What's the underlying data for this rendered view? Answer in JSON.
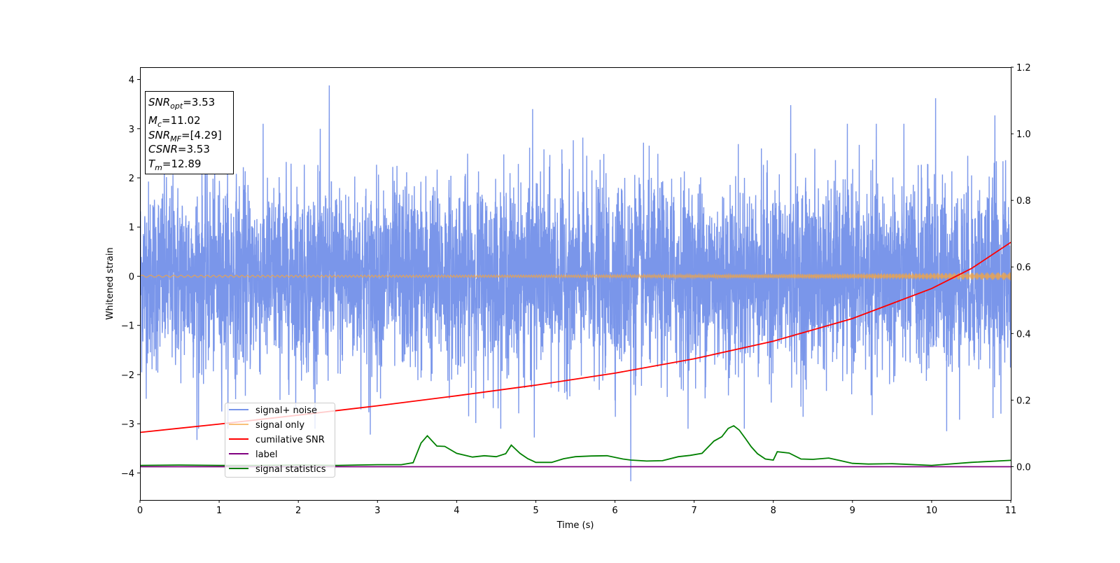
{
  "chart_data": {
    "type": "line",
    "xlabel": "Time (s)",
    "ylabel": "Whitened strain",
    "xlim": [
      0,
      11
    ],
    "ylim": [
      -4.55,
      4.25
    ],
    "y2lim": [
      -0.1,
      1.2
    ],
    "xticks": [
      "0",
      "1",
      "2",
      "3",
      "4",
      "5",
      "6",
      "7",
      "8",
      "9",
      "10",
      "11"
    ],
    "yticks": [
      "−4",
      "−3",
      "−2",
      "−1",
      "0",
      "1",
      "2",
      "3",
      "4"
    ],
    "y2ticks": [
      "0.0",
      "0.2",
      "0.4",
      "0.6",
      "0.8",
      "1.0",
      "1.2"
    ],
    "legend_position": "lower-left",
    "grid": false,
    "stats_box": {
      "snr_opt": {
        "label": "SNR",
        "sub": "opt",
        "value": "=3.53"
      },
      "mc": {
        "label": "M",
        "sub": "c",
        "value": "=11.02"
      },
      "snr_mf": {
        "label": "SNR",
        "sub": "MF",
        "value": "=[4.29]"
      },
      "csnr": {
        "label": "CSNR",
        "value": "=3.53"
      },
      "tm": {
        "label": "T",
        "sub": "m",
        "value": "=12.89"
      }
    },
    "series": [
      {
        "name": "signal+ noise",
        "axis": "left",
        "color": "#4169e1",
        "kind": "noise",
        "std": 0.95,
        "notable_spikes": [
          {
            "x": 2.39,
            "y": 3.88
          },
          {
            "x": 6.2,
            "y": -4.17
          },
          {
            "x": 10.05,
            "y": 3.62
          },
          {
            "x": 8.22,
            "y": 3.48
          },
          {
            "x": 4.96,
            "y": 3.4
          },
          {
            "x": 0.72,
            "y": -3.33
          },
          {
            "x": 2.91,
            "y": -3.22
          },
          {
            "x": 4.98,
            "y": -3.28
          },
          {
            "x": 10.8,
            "y": 3.27
          },
          {
            "x": 10.19,
            "y": -3.15
          }
        ]
      },
      {
        "name": "signal only",
        "axis": "left",
        "color": "#f5a540",
        "kind": "chirp",
        "amplitude_start": 0.02,
        "amplitude_end": 0.08
      },
      {
        "name": "cumilative SNR",
        "axis": "right",
        "color": "#ff0000",
        "x": [
          0,
          1,
          2,
          3,
          4,
          5,
          6,
          7,
          8,
          9,
          10,
          10.5,
          11
        ],
        "y": [
          0.103,
          0.128,
          0.155,
          0.183,
          0.213,
          0.245,
          0.281,
          0.324,
          0.377,
          0.445,
          0.535,
          0.595,
          0.674
        ]
      },
      {
        "name": "label",
        "axis": "right",
        "color": "#800080",
        "x": [
          0,
          11
        ],
        "y": [
          0,
          0
        ]
      },
      {
        "name": "signal statistics",
        "axis": "right",
        "color": "#008000",
        "x": [
          0,
          0.5,
          1,
          1.5,
          2,
          2.5,
          3,
          3.3,
          3.45,
          3.55,
          3.63,
          3.75,
          3.85,
          4.0,
          4.2,
          4.35,
          4.5,
          4.62,
          4.69,
          4.8,
          4.9,
          5.0,
          5.2,
          5.35,
          5.5,
          5.7,
          5.9,
          6.1,
          6.2,
          6.4,
          6.6,
          6.8,
          6.95,
          7.1,
          7.25,
          7.35,
          7.43,
          7.5,
          7.57,
          7.65,
          7.72,
          7.8,
          7.9,
          8.0,
          8.05,
          8.2,
          8.35,
          8.5,
          8.7,
          8.85,
          9.0,
          9.2,
          9.5,
          10.0,
          10.5,
          11.0
        ],
        "y": [
          0.004,
          0.005,
          0.004,
          0.004,
          0.005,
          0.004,
          0.006,
          0.006,
          0.012,
          0.071,
          0.093,
          0.062,
          0.061,
          0.04,
          0.029,
          0.033,
          0.03,
          0.039,
          0.065,
          0.04,
          0.024,
          0.013,
          0.013,
          0.024,
          0.03,
          0.032,
          0.033,
          0.023,
          0.02,
          0.017,
          0.018,
          0.03,
          0.034,
          0.04,
          0.077,
          0.09,
          0.115,
          0.123,
          0.11,
          0.084,
          0.06,
          0.039,
          0.023,
          0.02,
          0.045,
          0.041,
          0.023,
          0.022,
          0.026,
          0.018,
          0.01,
          0.008,
          0.009,
          0.004,
          0.013,
          0.019
        ]
      }
    ]
  }
}
